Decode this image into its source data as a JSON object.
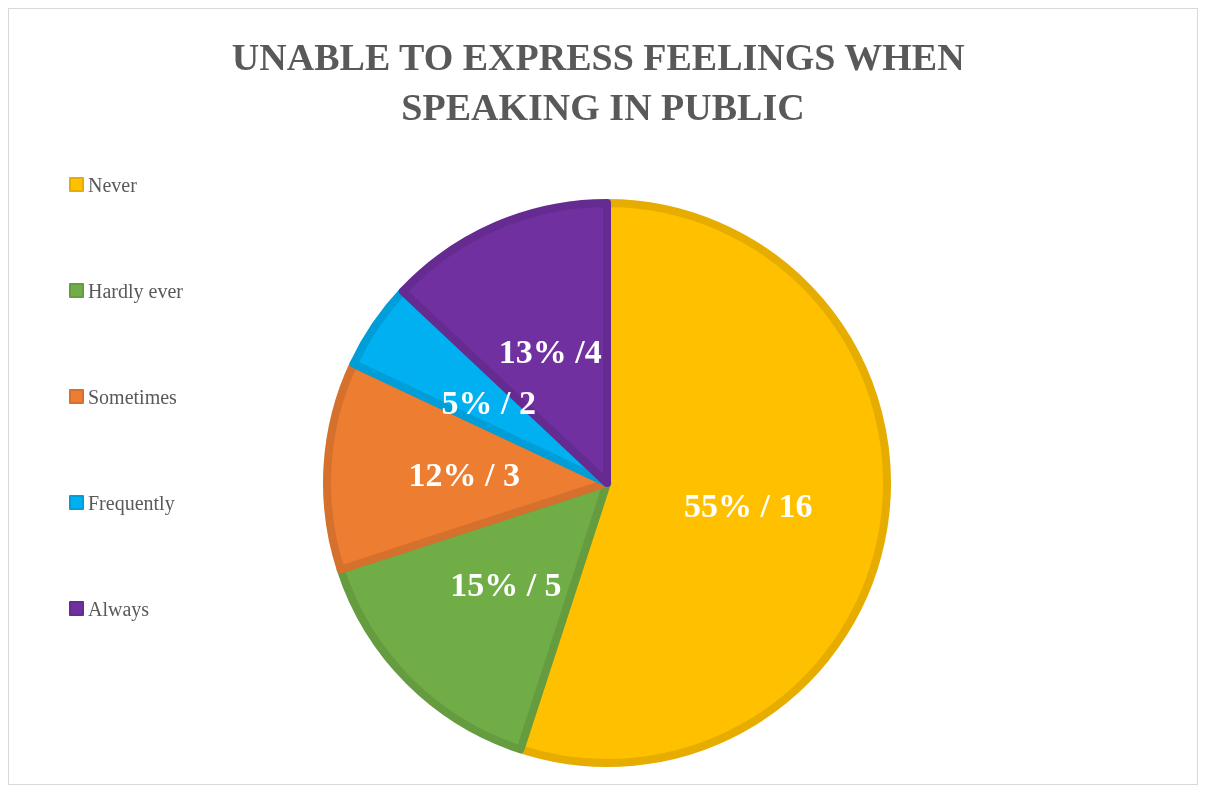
{
  "chart_data": {
    "type": "pie",
    "title": "UNABLE TO EXPRESS FEELINGS WHEN SPEAKING IN PUBLIC",
    "categories": [
      "Never",
      "Hardly ever",
      "Sometimes",
      "Frequently",
      "Always"
    ],
    "values": [
      55,
      15,
      12,
      5,
      13
    ],
    "value_labels": [
      "55% / 16",
      "15% / 5",
      "12% / 3",
      "5% / 2",
      "13% /4"
    ],
    "colors": [
      "#ffc000",
      "#70ad47",
      "#ed7d31",
      "#00b0f0",
      "#7030a0"
    ],
    "legend": "left"
  }
}
